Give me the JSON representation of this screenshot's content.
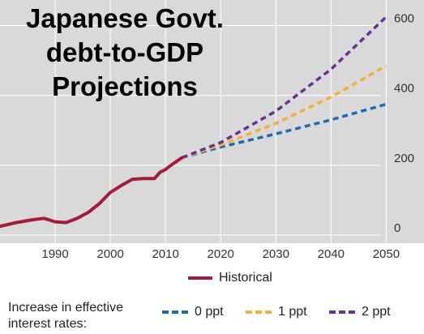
{
  "chart_data": {
    "type": "line",
    "title": "Japanese Govt. debt-to-GDP Projections",
    "title_lines": [
      "Japanese Govt.",
      "debt-to-GDP",
      "Projections"
    ],
    "xlabel": "",
    "ylabel": "",
    "xlim": [
      1980,
      2052
    ],
    "ylim": [
      0,
      650
    ],
    "x_ticks": [
      1990,
      2000,
      2010,
      2020,
      2030,
      2040,
      2050
    ],
    "y_ticks": [
      0,
      200,
      400,
      600
    ],
    "grid": true,
    "legend_note": [
      "Increase in effective",
      "interest rates:"
    ],
    "series": [
      {
        "name": "Historical",
        "color": "#a51c3a",
        "style": "solid",
        "x": [
          1980,
          1983,
          1986,
          1988,
          1990,
          1992,
          1994,
          1996,
          1998,
          2000,
          2002,
          2004,
          2006,
          2008,
          2009,
          2010,
          2011,
          2013
        ],
        "y": [
          25,
          36,
          44,
          48,
          38,
          36,
          48,
          65,
          90,
          122,
          142,
          160,
          162,
          162,
          180,
          188,
          200,
          222
        ]
      },
      {
        "name": "0 ppt",
        "color": "#1f6ab0",
        "style": "dashed",
        "x": [
          2013,
          2020,
          2030,
          2040,
          2050
        ],
        "y": [
          222,
          252,
          290,
          330,
          375
        ]
      },
      {
        "name": "1 ppt",
        "color": "#f2b036",
        "style": "dashed",
        "x": [
          2013,
          2020,
          2030,
          2040,
          2050
        ],
        "y": [
          222,
          258,
          320,
          395,
          485
        ]
      },
      {
        "name": "2 ppt",
        "color": "#6a3195",
        "style": "dashed",
        "x": [
          2013,
          2020,
          2030,
          2040,
          2050
        ],
        "y": [
          222,
          265,
          355,
          475,
          625
        ]
      }
    ]
  }
}
